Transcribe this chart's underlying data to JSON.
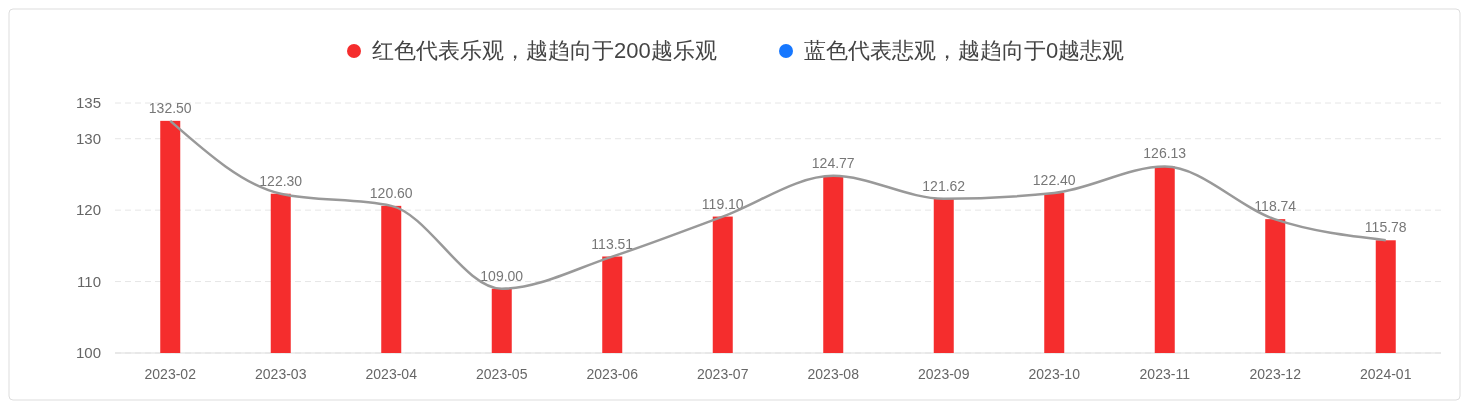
{
  "chart_data": {
    "type": "bar",
    "categories": [
      "2023-02",
      "2023-03",
      "2023-04",
      "2023-05",
      "2023-06",
      "2023-07",
      "2023-08",
      "2023-09",
      "2023-10",
      "2023-11",
      "2023-12",
      "2024-01"
    ],
    "series": [
      {
        "name": "红色代表乐观，越趋向于200越乐观",
        "color": "#f52d2d",
        "values": [
          132.5,
          122.3,
          120.6,
          109.0,
          113.51,
          119.1,
          124.77,
          121.62,
          122.4,
          126.13,
          118.74,
          115.78
        ],
        "value_labels": [
          "132.50",
          "122.30",
          "120.60",
          "109.00",
          "113.51",
          "119.10",
          "124.77",
          "121.62",
          "122.40",
          "126.13",
          "118.74",
          "115.78"
        ]
      },
      {
        "name": "蓝色代表悲观，越趋向于0越悲观",
        "color": "#1677ff",
        "values": [
          null,
          null,
          null,
          null,
          null,
          null,
          null,
          null,
          null,
          null,
          null,
          null
        ]
      },
      {
        "type": "line",
        "color": "#999999",
        "values": [
          132.5,
          122.3,
          120.6,
          109.0,
          113.5,
          119.1,
          124.8,
          121.6,
          122.4,
          126.1,
          118.7,
          115.8
        ]
      }
    ],
    "ylim": [
      100,
      135
    ],
    "yticks": [
      100,
      110,
      120,
      130,
      135
    ],
    "grid": "y",
    "legend": "top",
    "marker": "none",
    "line_style": "solid"
  }
}
